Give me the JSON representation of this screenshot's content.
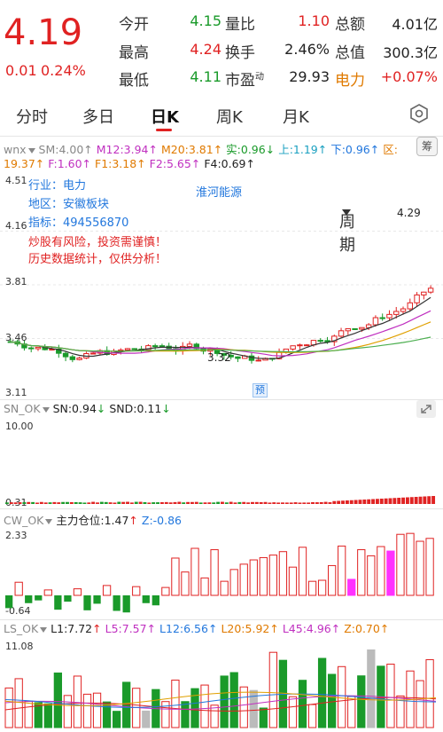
{
  "quote": {
    "price": "4.19",
    "change": "0.01",
    "change_pct": "0.24%",
    "open_label": "今开",
    "open": "4.15",
    "high_label": "最高",
    "high": "4.24",
    "low_label": "最低",
    "low": "4.11",
    "vol_ratio_label": "量比",
    "vol_ratio": "1.10",
    "turnover_label": "换手",
    "turnover": "2.46%",
    "pe_label": "市盈",
    "pe_sup": "动",
    "pe": "29.93",
    "amount_label": "总额",
    "amount": "4.01亿",
    "mcap_label": "总值",
    "mcap": "300.3亿",
    "sector_label": "电力",
    "sector_change": "+0.07%"
  },
  "tabs": [
    {
      "label": "分时"
    },
    {
      "label": "多日"
    },
    {
      "label": "日K"
    },
    {
      "label": "周K"
    },
    {
      "label": "月K"
    },
    {
      "label": "周期"
    }
  ],
  "active_tab": "日K",
  "main_panel": {
    "indicator_name": "wnx",
    "sm": "SM:4.00",
    "m12": "M12:3.94",
    "m20": "M20:3.81",
    "shi": "实:0.96",
    "shang": "上:1.19",
    "xia": "下:0.96",
    "qu": "区:",
    "qu_val": "19.37",
    "f": "F:1.60",
    "f1": "F1:3.18",
    "f2": "F2:5.65",
    "f4": "F4:0.69",
    "chip_btn": "筹",
    "info_industry": "行业：电力",
    "info_region": "地区：安徽板块",
    "info_index": "指标：494556870",
    "stock_name": "淮河能源",
    "warning1": "炒股有风险，投资需谨慎！",
    "warning2": "历史数据统计，仅供分析！",
    "high_mark": "4.29",
    "low_mark": "3.32",
    "forecast": "预",
    "axis": [
      "4.51",
      "4.16",
      "3.81",
      "3.46",
      "3.11"
    ]
  },
  "sn_panel": {
    "name": "SN_OK",
    "sn": "SN:0.94",
    "snd": "SND:0.11",
    "axis_top": "10.00",
    "axis_bottom": "0.31"
  },
  "cw_panel": {
    "name": "CW_OK",
    "main": "主力仓位:1.47",
    "z": "Z:-0.86",
    "axis_top": "2.33",
    "axis_bottom": "-0.64"
  },
  "ls_panel": {
    "name": "LS_OK",
    "l1": "L1:7.72",
    "l5": "L5:7.57",
    "l12": "L12:6.56",
    "l20": "L20:5.92",
    "l45": "L45:4.96",
    "z": "Z:0.70",
    "axis_top": "11.08"
  },
  "colors": {
    "up": "#e02222",
    "down": "#1a9a2a",
    "ma_magenta": "#c030c0",
    "ma_orange": "#e0a000",
    "ma_green": "#4caf50",
    "accent_tab": "#e02222"
  }
}
